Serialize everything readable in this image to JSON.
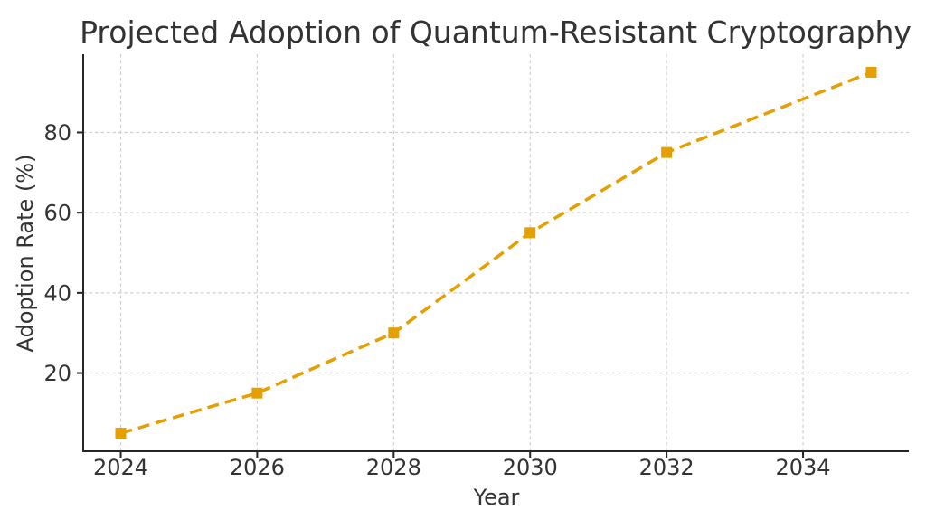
{
  "chart_data": {
    "type": "line",
    "title": "Projected Adoption of Quantum-Resistant Cryptography",
    "xlabel": "Year",
    "ylabel": "Adoption Rate (%)",
    "x": [
      2024,
      2026,
      2028,
      2030,
      2032,
      2035
    ],
    "y": [
      5,
      15,
      30,
      55,
      75,
      95
    ],
    "series_name": "Adoption Rate",
    "xticks": [
      2024,
      2026,
      2028,
      2030,
      2032,
      2034
    ],
    "yticks": [
      20,
      40,
      60,
      80
    ],
    "xlim": [
      2023.45,
      2035.55
    ],
    "ylim": [
      0.5,
      99.5
    ],
    "grid": true,
    "legend": false,
    "line_style": "dashed",
    "marker": "square",
    "colors": {
      "line": "#E69F00",
      "spine": "#262626",
      "text": "#333333",
      "grid": "#cfcfcf",
      "background": "#ffffff"
    }
  }
}
